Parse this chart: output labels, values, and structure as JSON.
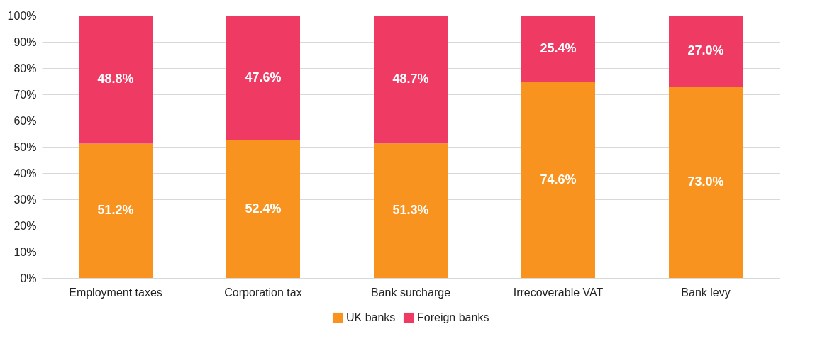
{
  "chart_data": {
    "type": "bar",
    "stacked": true,
    "categories": [
      "Employment taxes",
      "Corporation tax",
      "Bank surcharge",
      "Irrecoverable VAT",
      "Bank levy"
    ],
    "series": [
      {
        "name": "UK banks",
        "color": "#f7931e",
        "values": [
          51.2,
          52.4,
          51.3,
          74.6,
          73.0
        ],
        "value_labels": [
          "51.2%",
          "52.4%",
          "51.3%",
          "74.6%",
          "73.0%"
        ]
      },
      {
        "name": "Foreign banks",
        "color": "#ef3a63",
        "values": [
          48.8,
          47.6,
          48.7,
          25.4,
          27.0
        ],
        "value_labels": [
          "48.8%",
          "47.6%",
          "48.7%",
          "25.4%",
          "27.0%"
        ]
      }
    ],
    "ylim": [
      0,
      100
    ],
    "yticks": [
      {
        "value": 0,
        "label": "0%"
      },
      {
        "value": 10,
        "label": "10%"
      },
      {
        "value": 20,
        "label": "20%"
      },
      {
        "value": 30,
        "label": "30%"
      },
      {
        "value": 40,
        "label": "40%"
      },
      {
        "value": 50,
        "label": "50%"
      },
      {
        "value": 60,
        "label": "60%"
      },
      {
        "value": 70,
        "label": "70%"
      },
      {
        "value": 80,
        "label": "80%"
      },
      {
        "value": 90,
        "label": "90%"
      },
      {
        "value": 100,
        "label": "100%"
      }
    ],
    "grid": "y",
    "legend": "bottom"
  }
}
